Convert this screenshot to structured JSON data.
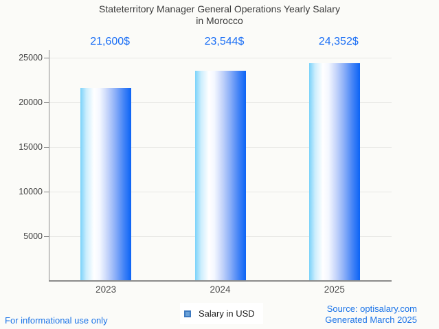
{
  "window": {
    "background": "#fbfbf8"
  },
  "title": {
    "line1": "Stateterritory Manager General Operations Yearly Salary",
    "line2": "in Morocco"
  },
  "chart_data": {
    "type": "bar",
    "title": "Stateterritory Manager General Operations Yearly Salary in Morocco",
    "categories": [
      "2023",
      "2024",
      "2025"
    ],
    "series": [
      {
        "name": "Salary in USD",
        "values": [
          21600,
          23544,
          24352
        ]
      }
    ],
    "value_labels": [
      "21,600$",
      "23,544$",
      "24,352$"
    ],
    "y_ticks": [
      5000,
      10000,
      15000,
      20000,
      25000
    ],
    "ylim": [
      0,
      25000
    ],
    "grid": true,
    "legend_position": "bottom",
    "style": {
      "bar_gradient": [
        "#7ad2fa",
        "#ffffff",
        "#0b63f5"
      ],
      "value_label_color": "#1a6ef5",
      "ytick_label_color": "#3e3e3e",
      "xtick_label_color": "#4c4c4c",
      "gridline_color": "#e7e7e4",
      "axis_line_color": "#8a8a8a"
    }
  },
  "legend": {
    "label": "Salary in USD",
    "swatch_fill": "#6aa1d8",
    "swatch_border": "#3d79c0"
  },
  "footer": {
    "disclaimer": "For informational use only",
    "source": "Source: optisalary.com",
    "generated": "Generated March 2025",
    "link_color": "#1a73e8"
  }
}
